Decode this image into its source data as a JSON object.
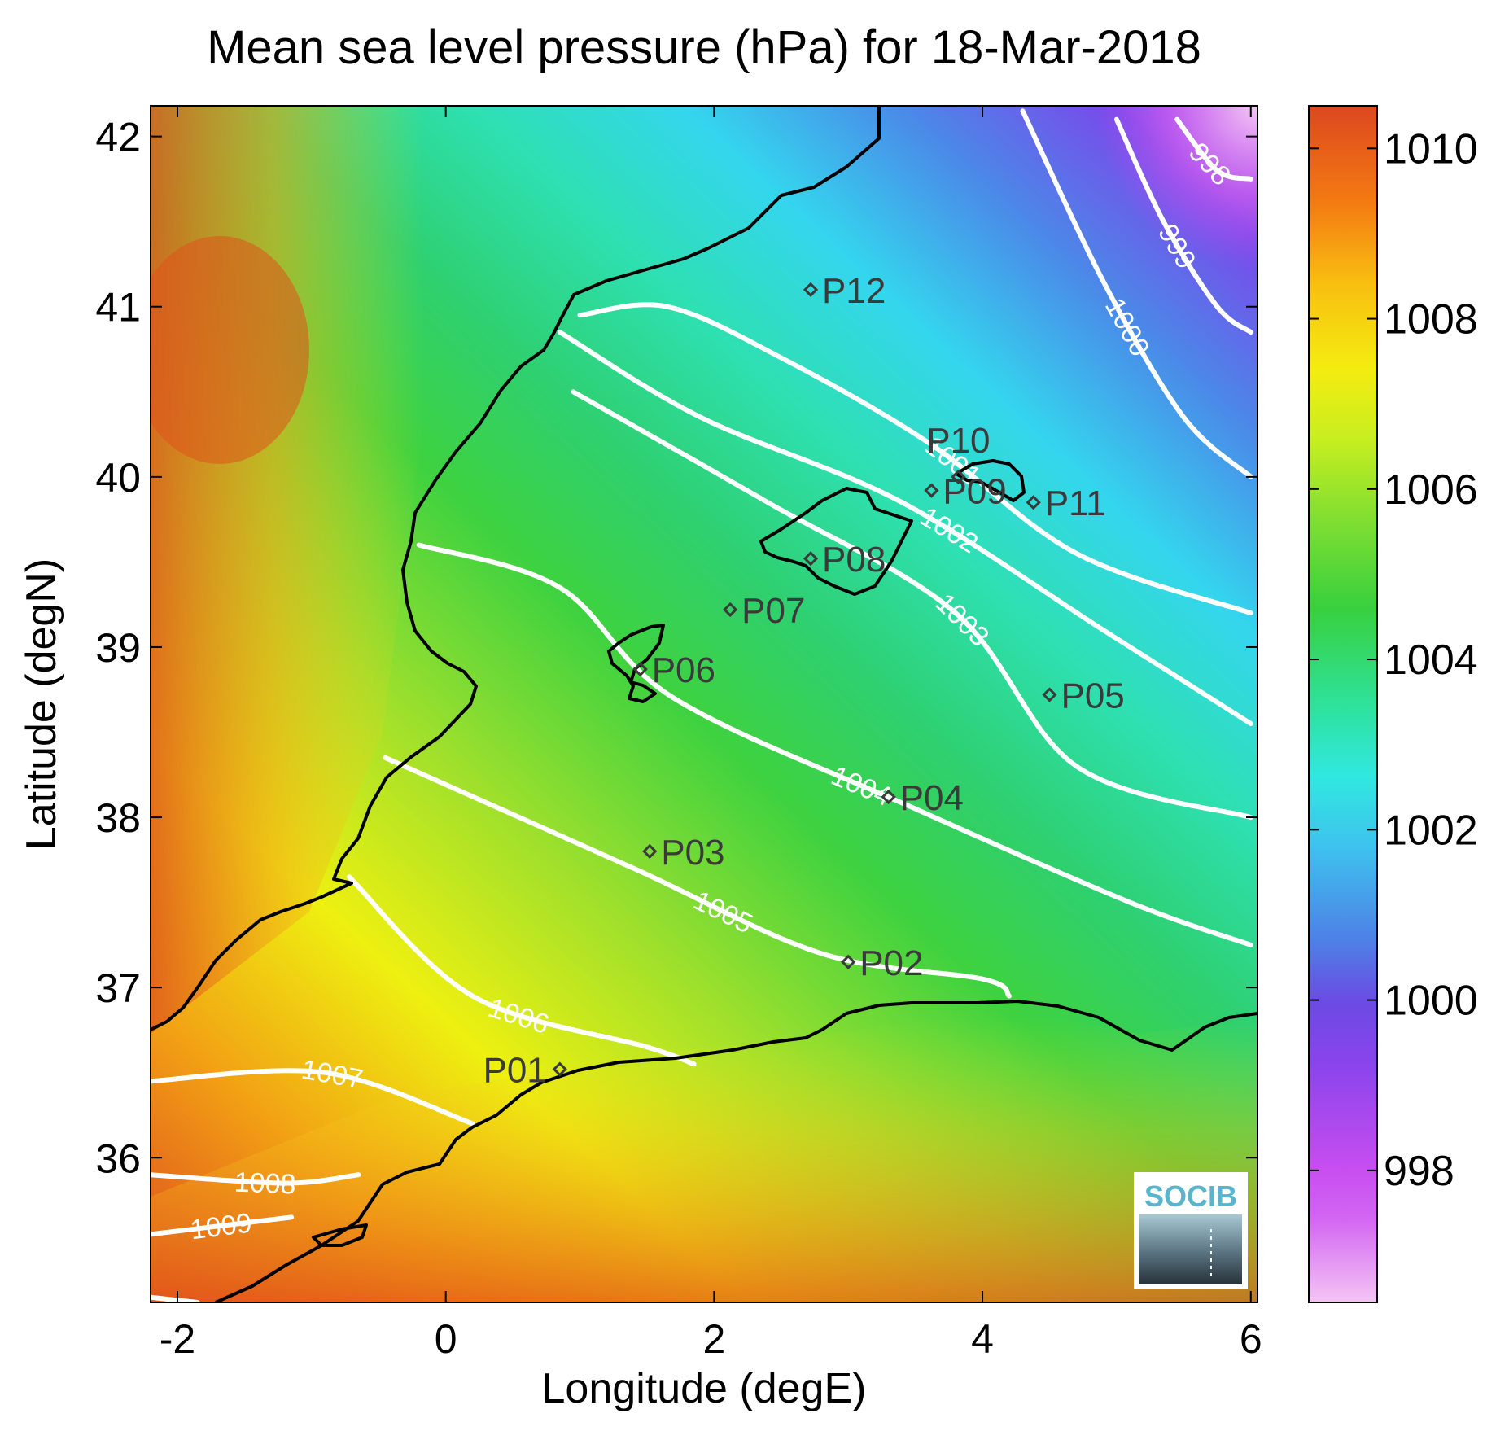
{
  "title": "Mean sea level pressure (hPa) for 18-Mar-2018",
  "xlabel": "Longitude (degE)",
  "ylabel": "Latitude (degN)",
  "x_axis": {
    "range": [
      -2.2,
      6.05
    ],
    "ticks": [
      -2,
      0,
      2,
      4,
      6
    ],
    "tick_labels": [
      "-2",
      "0",
      "2",
      "4",
      "6"
    ]
  },
  "y_axis": {
    "range": [
      35.15,
      42.18
    ],
    "ticks": [
      36,
      37,
      38,
      39,
      40,
      41,
      42
    ],
    "tick_labels": [
      "36",
      "37",
      "38",
      "39",
      "40",
      "41",
      "42"
    ]
  },
  "colorbar": {
    "range": [
      996.45,
      1010.5
    ],
    "ticks": [
      998,
      1000,
      1002,
      1004,
      1006,
      1008,
      1010
    ],
    "tick_labels": [
      "998",
      "1000",
      "1002",
      "1004",
      "1006",
      "1008",
      "1010"
    ],
    "colormap": [
      "#f4c4f4",
      "#c84ef0",
      "#8a44ec",
      "#6c4ae4",
      "#4f7ee6",
      "#3ec2ee",
      "#30e8e0",
      "#2ee29a",
      "#38d03e",
      "#86e030",
      "#c6ee20",
      "#f4ec10",
      "#f8c010",
      "#f47a12",
      "#ec5014",
      "#dc4820"
    ]
  },
  "chart_data": {
    "type": "map",
    "variable": "Mean sea level pressure",
    "unit": "hPa",
    "date": "18-Mar-2018",
    "contour_labels": [
      "998",
      "999",
      "1000",
      "1001",
      "1002",
      "1003",
      "1004",
      "1005",
      "1006",
      "1007",
      "1008",
      "1009"
    ],
    "contours": [
      {
        "level": 998,
        "label": "998",
        "points": [
          [
            5.45,
            42.1
          ],
          [
            5.75,
            41.8
          ],
          [
            6.0,
            41.75
          ]
        ]
      },
      {
        "level": 999,
        "label": "999",
        "points": [
          [
            5.0,
            42.1
          ],
          [
            5.35,
            41.5
          ],
          [
            5.75,
            41.0
          ],
          [
            6.0,
            40.85
          ]
        ]
      },
      {
        "level": 1000,
        "label": "1000",
        "points": [
          [
            4.3,
            42.15
          ],
          [
            4.9,
            41.15
          ],
          [
            5.5,
            40.35
          ],
          [
            6.0,
            40.0
          ]
        ]
      },
      {
        "level": 1001,
        "label": "1001",
        "points": [
          [
            1.0,
            40.95
          ],
          [
            1.65,
            41.0
          ],
          [
            2.5,
            40.7
          ],
          [
            3.6,
            40.2
          ],
          [
            4.7,
            39.55
          ],
          [
            6.0,
            39.2
          ]
        ]
      },
      {
        "level": 1002,
        "label": "1002",
        "points": [
          [
            0.85,
            40.85
          ],
          [
            1.9,
            40.35
          ],
          [
            3.4,
            39.85
          ],
          [
            4.9,
            39.1
          ],
          [
            6.0,
            38.55
          ]
        ]
      },
      {
        "level": 1003,
        "label": "1003",
        "points": [
          [
            0.95,
            40.5
          ],
          [
            2.4,
            39.85
          ],
          [
            3.8,
            39.2
          ],
          [
            4.7,
            38.3
          ],
          [
            6.0,
            38.0
          ]
        ]
      },
      {
        "level": 1004,
        "label": "1004",
        "points": [
          [
            -0.2,
            39.6
          ],
          [
            0.85,
            39.35
          ],
          [
            1.7,
            38.7
          ],
          [
            3.5,
            38.05
          ],
          [
            5.1,
            37.5
          ],
          [
            6.0,
            37.25
          ]
        ]
      },
      {
        "level": 1005,
        "label": "1005",
        "points": [
          [
            -0.45,
            38.35
          ],
          [
            1.4,
            37.7
          ],
          [
            2.8,
            37.2
          ],
          [
            4.0,
            37.05
          ],
          [
            4.2,
            36.95
          ]
        ]
      },
      {
        "level": 1006,
        "label": "1006",
        "points": [
          [
            -0.72,
            37.65
          ],
          [
            0.2,
            36.95
          ],
          [
            1.5,
            36.65
          ],
          [
            1.85,
            36.55
          ]
        ]
      },
      {
        "level": 1007,
        "label": "1007",
        "points": [
          [
            -2.2,
            36.45
          ],
          [
            -0.9,
            36.5
          ],
          [
            0.2,
            36.2
          ]
        ]
      },
      {
        "level": 1008,
        "label": "1008",
        "points": [
          [
            -2.2,
            35.9
          ],
          [
            -1.2,
            35.85
          ],
          [
            -0.65,
            35.9
          ]
        ]
      },
      {
        "level": 1009,
        "label": "1009",
        "points": [
          [
            -2.2,
            35.55
          ],
          [
            -1.15,
            35.65
          ]
        ]
      },
      {
        "level": 1010,
        "label": "",
        "points": [
          [
            -2.2,
            35.18
          ],
          [
            -1.85,
            35.15
          ]
        ]
      }
    ],
    "points": [
      {
        "label": "P01",
        "lon": 0.85,
        "lat": 36.52
      },
      {
        "label": "P02",
        "lon": 3.0,
        "lat": 37.15
      },
      {
        "label": "P03",
        "lon": 1.52,
        "lat": 37.8
      },
      {
        "label": "P04",
        "lon": 3.3,
        "lat": 38.12
      },
      {
        "label": "P05",
        "lon": 4.5,
        "lat": 38.72
      },
      {
        "label": "P06",
        "lon": 1.45,
        "lat": 38.87
      },
      {
        "label": "P07",
        "lon": 2.12,
        "lat": 39.22
      },
      {
        "label": "P08",
        "lon": 2.72,
        "lat": 39.52
      },
      {
        "label": "P09",
        "lon": 3.62,
        "lat": 39.92
      },
      {
        "label": "P10",
        "lon": 3.82,
        "lat": 40.0
      },
      {
        "label": "P11",
        "lon": 4.38,
        "lat": 39.85
      },
      {
        "label": "P12",
        "lon": 2.72,
        "lat": 41.1
      }
    ]
  },
  "logo": {
    "text": "SOCIB"
  }
}
